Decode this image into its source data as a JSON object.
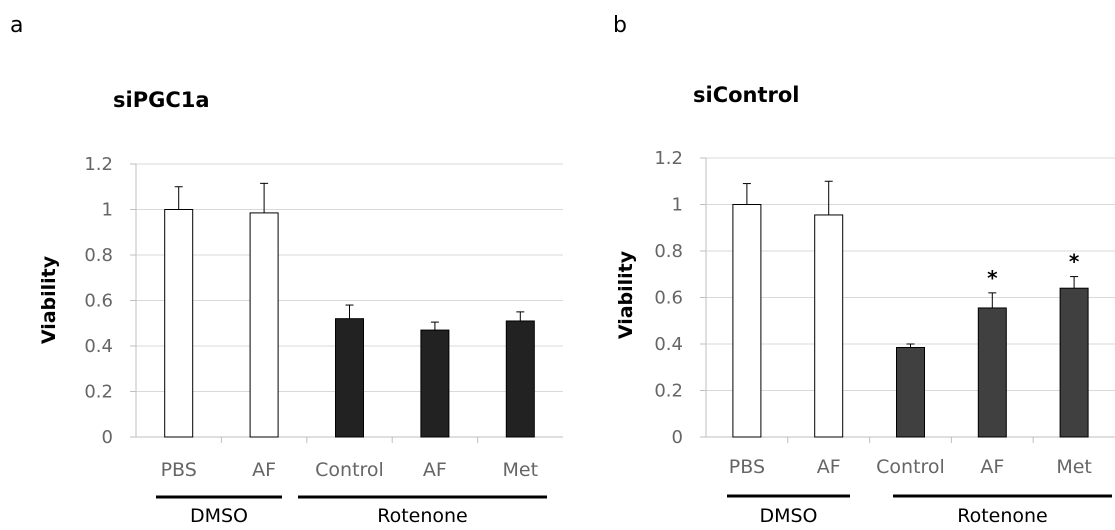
{
  "chart_data": [
    {
      "panel_label": "a",
      "type": "bar",
      "title": "siPGC1a",
      "ylabel": "Viability",
      "ylim": [
        0,
        1.2
      ],
      "yticks": [
        "0",
        "0.2",
        "0.4",
        "0.6",
        "0.8",
        "1",
        "1.2"
      ],
      "grid": true,
      "categories": [
        "PBS",
        "AF",
        "Control",
        "AF",
        "Met"
      ],
      "values": [
        1.0,
        0.985,
        0.52,
        0.47,
        0.51
      ],
      "errors": [
        0.1,
        0.13,
        0.06,
        0.035,
        0.04
      ],
      "bar_colors": [
        "#ffffff",
        "#ffffff",
        "#222222",
        "#222222",
        "#222222"
      ],
      "significance": [
        "",
        "",
        "",
        "",
        ""
      ],
      "groups": [
        {
          "label": "DMSO",
          "span": [
            0,
            1
          ]
        },
        {
          "label": "Rotenone",
          "span": [
            2,
            4
          ]
        }
      ]
    },
    {
      "panel_label": "b",
      "type": "bar",
      "title": "siControl",
      "ylabel": "Viability",
      "ylim": [
        0,
        1.2
      ],
      "yticks": [
        "0",
        "0.2",
        "0.4",
        "0.6",
        "0.8",
        "1",
        "1.2"
      ],
      "grid": true,
      "categories": [
        "PBS",
        "AF",
        "Control",
        "AF",
        "Met"
      ],
      "values": [
        1.0,
        0.955,
        0.385,
        0.555,
        0.64
      ],
      "errors": [
        0.09,
        0.145,
        0.015,
        0.065,
        0.05
      ],
      "bar_colors": [
        "#ffffff",
        "#ffffff",
        "#404040",
        "#404040",
        "#404040"
      ],
      "significance": [
        "",
        "",
        "",
        "*",
        "*"
      ],
      "groups": [
        {
          "label": "DMSO",
          "span": [
            0,
            1
          ]
        },
        {
          "label": "Rotenone",
          "span": [
            2,
            4
          ]
        }
      ]
    }
  ]
}
